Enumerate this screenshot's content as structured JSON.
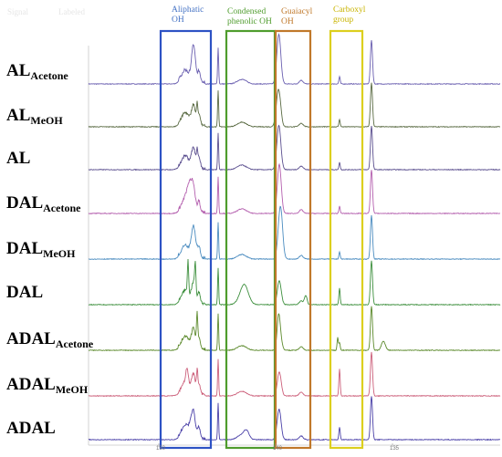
{
  "faint_header": [
    "Signal",
    "Labeled"
  ],
  "chart_data": {
    "type": "line",
    "xlabel": "",
    "ylabel": "",
    "x_ticks": [
      "150",
      "140",
      "135"
    ],
    "series": [
      {
        "name": "AL",
        "sub": "Acetone",
        "color": "#6a5fb0"
      },
      {
        "name": "AL",
        "sub": "MeOH",
        "color": "#5a6b43"
      },
      {
        "name": "AL",
        "sub": "",
        "color": "#5b4f8f"
      },
      {
        "name": "DAL",
        "sub": "Acetone",
        "color": "#b45fae"
      },
      {
        "name": "DAL",
        "sub": "MeOH",
        "color": "#4b8cc0"
      },
      {
        "name": "DAL",
        "sub": "",
        "color": "#3d8f3d"
      },
      {
        "name": "ADAL",
        "sub": "Acetone",
        "color": "#5c8a2c"
      },
      {
        "name": "ADAL",
        "sub": "MeOH",
        "color": "#cc5f7a"
      },
      {
        "name": "ADAL",
        "sub": "",
        "color": "#4a40a8"
      }
    ],
    "regions": [
      {
        "label": "Aliphatic OH",
        "lines": [
          "Aliphatic",
          "OH"
        ],
        "color": "#2d52c4",
        "text_color": "#4472c4"
      },
      {
        "label": "Condensed phenolic OH",
        "lines": [
          "Condensed",
          "phenolic OH"
        ],
        "color": "#4f9c2d",
        "text_color": "#4f9c2d"
      },
      {
        "label": "Guaiacyl OH",
        "lines": [
          "Guaiacyl",
          "OH"
        ],
        "color": "#c0782a",
        "text_color": "#c0782a"
      },
      {
        "label": "Carboxyl group",
        "lines": [
          "Carboxyl",
          "group"
        ],
        "color": "#dccf1e",
        "text_color": "#c9b400"
      }
    ]
  }
}
